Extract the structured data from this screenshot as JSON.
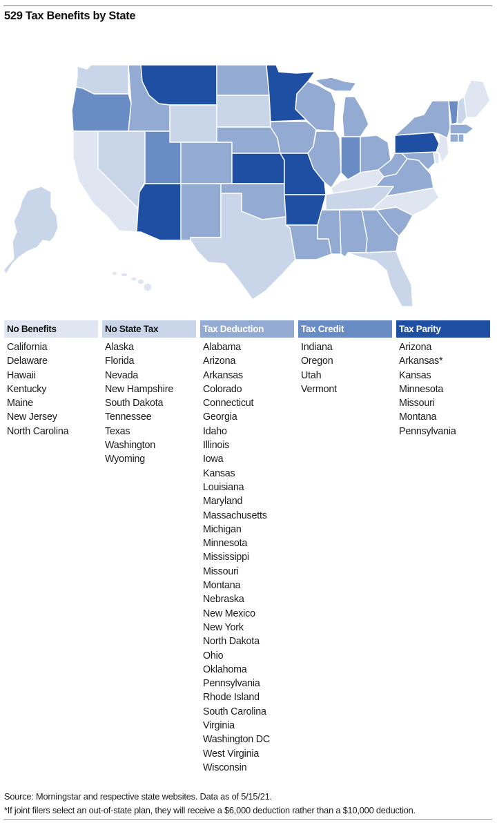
{
  "title": "529 Tax Benefits by State",
  "colors": {
    "no_benefits": "#dfe6f1",
    "no_state_tax": "#c9d5e8",
    "tax_deduction": "#93abd2",
    "tax_credit": "#6a8cc4",
    "tax_parity": "#1f4fa3",
    "legend_text_dark": "#111111",
    "legend_text_light": "#ffffff"
  },
  "legend": {
    "no_benefits": {
      "label": "No Benefits",
      "states": [
        "California",
        "Delaware",
        "Hawaii",
        "Kentucky",
        "Maine",
        "New Jersey",
        "North Carolina"
      ]
    },
    "no_state_tax": {
      "label": "No State Tax",
      "states": [
        "Alaska",
        "Florida",
        "Nevada",
        "New Hampshire",
        "South Dakota",
        "Tennessee",
        "Texas",
        "Washington",
        "Wyoming"
      ]
    },
    "tax_deduction": {
      "label": "Tax Deduction",
      "states": [
        "Alabama",
        "Arizona",
        "Arkansas",
        "Colorado",
        "Connecticut",
        "Georgia",
        "Idaho",
        "Illinois",
        "Iowa",
        "Kansas",
        "Louisiana",
        "Maryland",
        "Massachusetts",
        "Michigan",
        "Minnesota",
        "Mississippi",
        "Missouri",
        "Montana",
        "Nebraska",
        "New Mexico",
        "New York",
        "North Dakota",
        "Ohio",
        "Oklahoma",
        "Pennsylvania",
        "Rhode Island",
        "South Carolina",
        "Virginia",
        "Washington DC",
        "West Virginia",
        "Wisconsin"
      ]
    },
    "tax_credit": {
      "label": "Tax Credit",
      "states": [
        "Indiana",
        "Oregon",
        "Utah",
        "Vermont"
      ]
    },
    "tax_parity": {
      "label": "Tax Parity",
      "states": [
        "Arizona",
        "Arkansas*",
        "Kansas",
        "Minnesota",
        "Missouri",
        "Montana",
        "Pennsylvania"
      ]
    }
  },
  "footer": {
    "source": "Source: Morningstar and respective state websites. Data as of 5/15/21.",
    "note": "*If joint filers select an out-of-state plan, they will receive a $6,000 deduction rather than a $10,000 deduction."
  }
}
